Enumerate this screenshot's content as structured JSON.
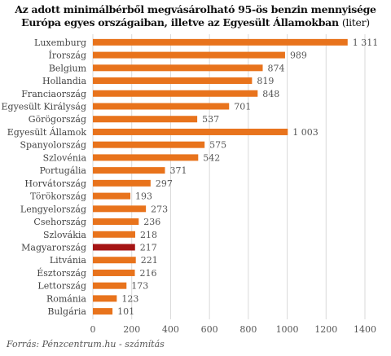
{
  "chart_data": {
    "type": "bar",
    "orientation": "horizontal",
    "title": "Az adott minimálbérből megvásárolható 95-ös benzin mennyisége Európa egyes országaiban, illetve az Egyesült Államokban",
    "title_unit": "(liter)",
    "categories": [
      "Luxemburg",
      "Írország",
      "Belgium",
      "Hollandia",
      "Franciaország",
      "Egyesült Királyság",
      "Görögország",
      "Egyesült Államok",
      "Spanyolország",
      "Szlovénia",
      "Portugália",
      "Horvátország",
      "Törökország",
      "Lengyelország",
      "Csehország",
      "Szlovákia",
      "Magyarország",
      "Litvánia",
      "Észtország",
      "Lettország",
      "Románia",
      "Bulgária"
    ],
    "values": [
      1311,
      989,
      874,
      819,
      848,
      701,
      537,
      1003,
      575,
      542,
      371,
      297,
      193,
      273,
      236,
      218,
      217,
      221,
      216,
      173,
      123,
      101
    ],
    "value_labels": [
      "1 311",
      "989",
      "874",
      "819",
      "848",
      "701",
      "537",
      "1 003",
      "575",
      "542",
      "371",
      "297",
      "193",
      "273",
      "236",
      "218",
      "217",
      "221",
      "216",
      "173",
      "123",
      "101"
    ],
    "highlight": "Magyarország",
    "xlim": [
      0,
      1400
    ],
    "xticks": [
      0,
      200,
      400,
      600,
      800,
      1000,
      1200,
      1400
    ],
    "grid": true,
    "colors": {
      "bar": "#e8731c",
      "highlight": "#a51414"
    }
  },
  "source": "Forrás: Pénzcentrum.hu - számítás"
}
